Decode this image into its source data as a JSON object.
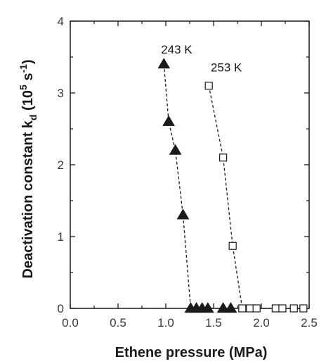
{
  "chart_data": {
    "type": "scatter",
    "xlabel": "Ethene pressure (MPa)",
    "ylabel": {
      "main": "Deactivation constant k",
      "sub": "d",
      "unit_open": " (10",
      "unit_exp": "5",
      "unit_mid": " s",
      "unit_exp2": "-1",
      "unit_close": ")"
    },
    "xlim": [
      0.0,
      2.5
    ],
    "ylim": [
      0,
      4
    ],
    "xticks": [
      "0.0",
      "0.5",
      "1.0",
      "1.5",
      "2.0",
      "2.5"
    ],
    "yticks": [
      "0",
      "1",
      "2",
      "3",
      "4"
    ],
    "grid": false,
    "series": [
      {
        "name": "243 K",
        "marker": "filled-triangle",
        "color": "#1a1a1a",
        "line": "dashed",
        "x": [
          0.98,
          1.03,
          1.1,
          1.18,
          1.26,
          1.32,
          1.38,
          1.44,
          1.6,
          1.68
        ],
        "y": [
          3.4,
          2.6,
          2.2,
          1.3,
          0.0,
          0.0,
          0.0,
          0.0,
          0.0,
          0.0
        ]
      },
      {
        "name": "253 K",
        "marker": "open-square",
        "color": "#1a1a1a",
        "line": "dashed",
        "x": [
          1.45,
          1.6,
          1.7,
          1.8,
          1.88,
          1.95,
          2.15,
          2.22,
          2.34,
          2.44
        ],
        "y": [
          3.1,
          2.1,
          0.87,
          0.0,
          0.0,
          0.0,
          0.0,
          0.0,
          0.0,
          0.0
        ]
      }
    ],
    "annotations": [
      {
        "text": "243 K",
        "x": 0.95,
        "y": 3.55
      },
      {
        "text": "253 K",
        "x": 1.47,
        "y": 3.3
      }
    ]
  }
}
